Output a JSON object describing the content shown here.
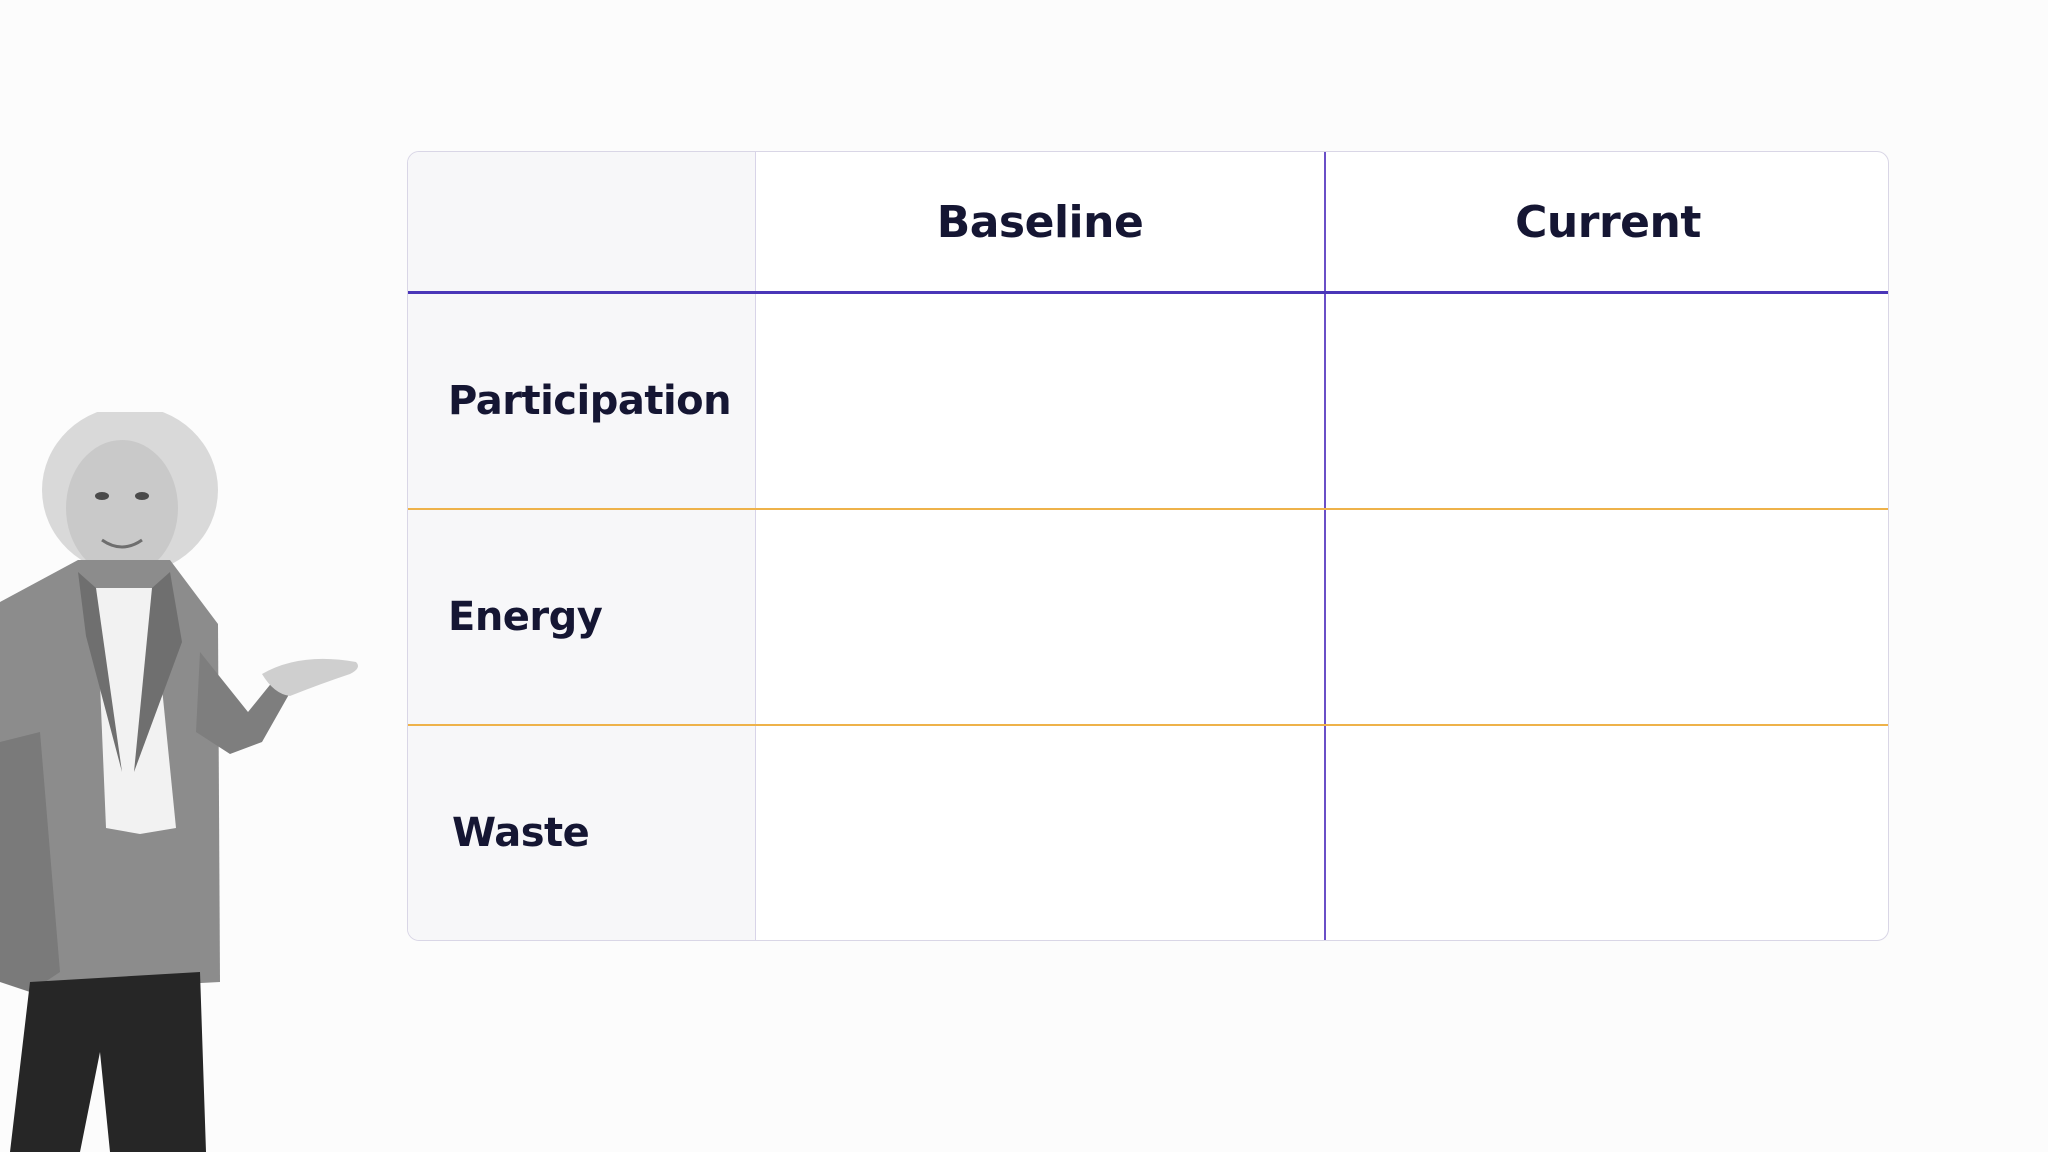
{
  "table": {
    "columns": [
      "Baseline",
      "Current"
    ],
    "rows": [
      {
        "label": "Participation",
        "cells": [
          "",
          ""
        ]
      },
      {
        "label": "Energy",
        "cells": [
          "",
          ""
        ]
      },
      {
        "label": "Waste",
        "cells": [
          "",
          ""
        ]
      }
    ]
  },
  "colors": {
    "header_rule": "#4a36b8",
    "row_rule": "#eeb24a",
    "column_divider": "#6a4fc7",
    "text": "#151633"
  }
}
